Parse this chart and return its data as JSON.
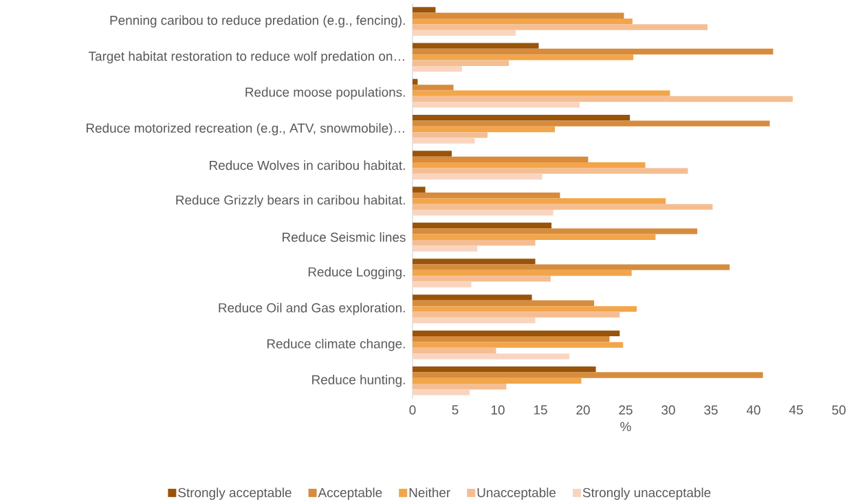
{
  "chart_data": {
    "type": "bar",
    "orientation": "horizontal",
    "xlabel": "%",
    "categories": [
      "Penning caribou to reduce predation (e.g., fencing).",
      "Target habitat restoration to reduce wolf predation on…",
      "Reduce moose populations.",
      "Reduce motorized recreation (e.g., ATV, snowmobile)…",
      "Reduce Wolves in caribou habitat.",
      "Reduce Grizzly bears in caribou habitat.",
      "Reduce Seismic lines",
      "Reduce Logging.",
      "Reduce Oil and Gas exploration.",
      "Reduce climate change.",
      "Reduce hunting."
    ],
    "series": [
      {
        "name": "Strongly acceptable",
        "color": "#995409",
        "values": [
          2.7,
          14.8,
          0.6,
          25.5,
          4.6,
          1.5,
          16.3,
          14.4,
          14.0,
          24.3,
          21.5
        ]
      },
      {
        "name": "Acceptable",
        "color": "#d68c3c",
        "values": [
          24.8,
          42.3,
          4.8,
          41.9,
          20.6,
          17.3,
          33.4,
          37.2,
          21.3,
          23.1,
          41.1
        ]
      },
      {
        "name": "Neither",
        "color": "#f2a54a",
        "values": [
          25.8,
          25.9,
          30.2,
          16.7,
          27.3,
          29.7,
          28.5,
          25.7,
          26.3,
          24.7,
          19.8
        ]
      },
      {
        "name": "Unacceptable",
        "color": "#f5be92",
        "values": [
          34.6,
          11.3,
          44.6,
          8.8,
          32.3,
          35.2,
          14.4,
          16.2,
          24.3,
          9.8,
          11.0
        ]
      },
      {
        "name": "Strongly unacceptable",
        "color": "#f9d5bf",
        "values": [
          12.1,
          5.8,
          19.6,
          7.3,
          15.2,
          16.5,
          7.6,
          6.9,
          14.4,
          18.4,
          6.7
        ]
      }
    ],
    "xlim": [
      0,
      50
    ],
    "xticks": [
      0,
      5,
      10,
      15,
      20,
      25,
      30,
      35,
      40,
      45,
      50
    ],
    "legend": "bottom"
  }
}
